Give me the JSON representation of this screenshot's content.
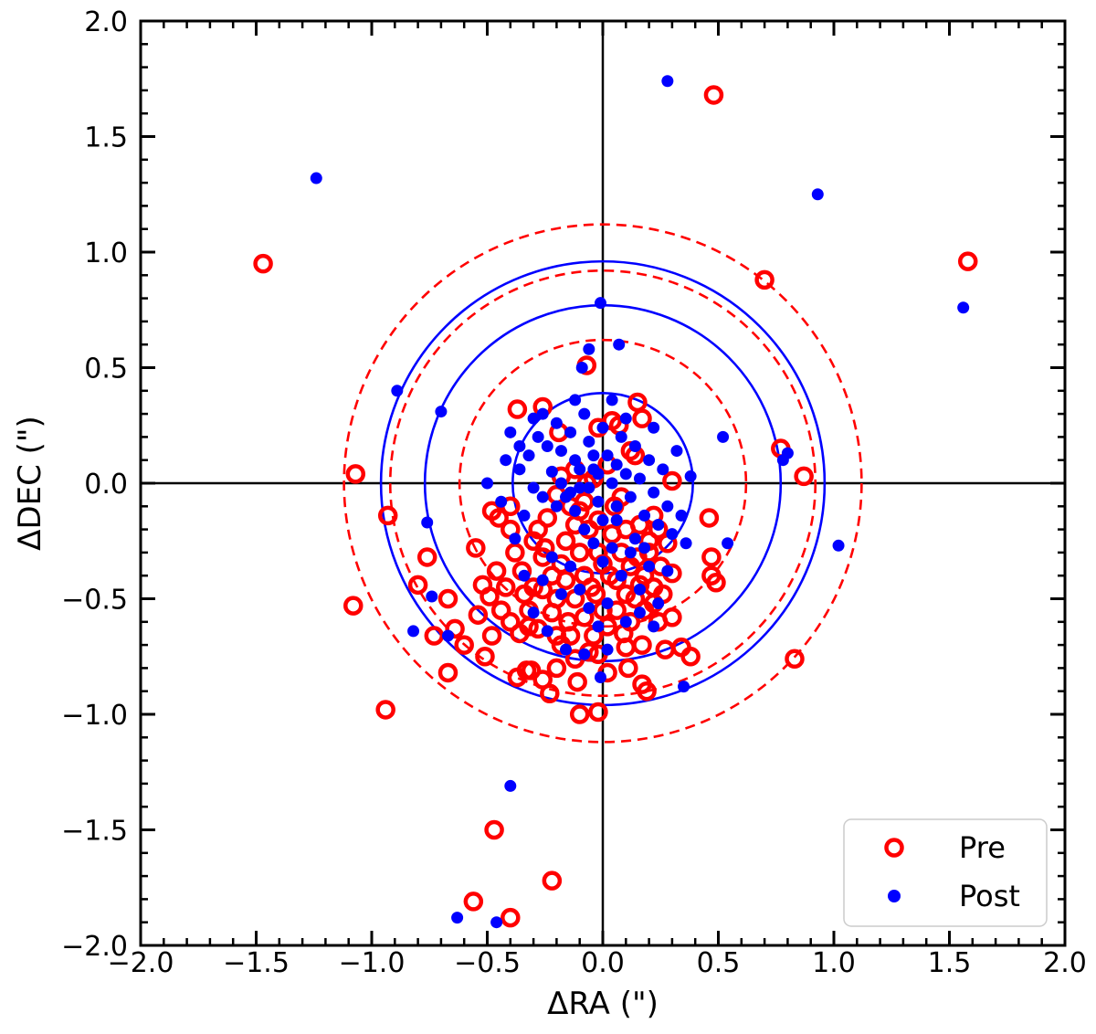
{
  "chart_data": {
    "type": "scatter",
    "xlabel": "ΔRA (\")",
    "ylabel": "ΔDEC (\")",
    "xlim": [
      -2.0,
      2.0
    ],
    "ylim": [
      -2.0,
      2.0
    ],
    "x_ticks": [
      "−2.0",
      "−1.5",
      "−1.0",
      "−0.5",
      "0.0",
      "0.5",
      "1.0",
      "1.5",
      "2.0"
    ],
    "y_ticks": [
      "2.0",
      "1.5",
      "1.0",
      "0.5",
      "0.0",
      "−0.5",
      "−1.0",
      "−1.5",
      "−2.0"
    ],
    "grid": false,
    "legend_position": "bottom-right",
    "reference_lines": {
      "x": 0.0,
      "y": 0.0
    },
    "circles": [
      {
        "group": "Pre",
        "radius": 0.62,
        "style": "dashed",
        "color": "#ff0000"
      },
      {
        "group": "Pre",
        "radius": 0.92,
        "style": "dashed",
        "color": "#ff0000"
      },
      {
        "group": "Pre",
        "radius": 1.12,
        "style": "dashed",
        "color": "#ff0000"
      },
      {
        "group": "Post",
        "radius": 0.39,
        "style": "solid",
        "color": "#0000ff"
      },
      {
        "group": "Post",
        "radius": 0.77,
        "style": "solid",
        "color": "#0000ff"
      },
      {
        "group": "Post",
        "radius": 0.96,
        "style": "solid",
        "color": "#0000ff"
      }
    ],
    "series": [
      {
        "name": "Pre",
        "marker": "open-circle",
        "color": "#ff0000",
        "points": [
          [
            -1.47,
            0.95
          ],
          [
            0.48,
            1.68
          ],
          [
            0.7,
            0.88
          ],
          [
            1.58,
            0.96
          ],
          [
            -1.07,
            0.04
          ],
          [
            -0.93,
            -0.14
          ],
          [
            -1.08,
            -0.53
          ],
          [
            -0.94,
            -0.98
          ],
          [
            0.77,
            0.15
          ],
          [
            0.87,
            0.03
          ],
          [
            0.83,
            -0.76
          ],
          [
            0.46,
            -0.15
          ],
          [
            0.47,
            -0.32
          ],
          [
            0.47,
            -0.4
          ],
          [
            0.49,
            -0.43
          ],
          [
            -0.47,
            -1.5
          ],
          [
            -0.22,
            -1.72
          ],
          [
            -0.56,
            -1.81
          ],
          [
            -0.4,
            -1.88
          ],
          [
            -0.76,
            -0.32
          ],
          [
            -0.8,
            -0.44
          ],
          [
            -0.67,
            -0.5
          ],
          [
            -0.73,
            -0.66
          ],
          [
            -0.64,
            -0.63
          ],
          [
            -0.67,
            -0.82
          ],
          [
            -0.55,
            -0.28
          ],
          [
            -0.52,
            -0.44
          ],
          [
            -0.49,
            -0.49
          ],
          [
            -0.48,
            -0.66
          ],
          [
            -0.51,
            -0.75
          ],
          [
            -0.4,
            -0.6
          ],
          [
            -0.37,
            -0.84
          ],
          [
            -0.33,
            -0.81
          ],
          [
            -0.31,
            -0.81
          ],
          [
            -0.26,
            -0.85
          ],
          [
            -0.23,
            -0.91
          ],
          [
            -0.1,
            -1.0
          ],
          [
            -0.02,
            -0.99
          ],
          [
            -0.11,
            -0.86
          ],
          [
            -0.06,
            -0.73
          ],
          [
            -0.02,
            -0.74
          ],
          [
            0.1,
            -0.71
          ],
          [
            0.11,
            -0.8
          ],
          [
            0.17,
            -0.87
          ],
          [
            0.19,
            -0.9
          ],
          [
            0.17,
            -0.7
          ],
          [
            0.24,
            -0.6
          ],
          [
            0.3,
            -0.58
          ],
          [
            0.27,
            -0.72
          ],
          [
            0.34,
            -0.71
          ],
          [
            0.38,
            -0.75
          ],
          [
            0.3,
            -0.39
          ],
          [
            0.3,
            0.01
          ],
          [
            0.22,
            -0.14
          ],
          [
            0.15,
            0.35
          ],
          [
            0.17,
            0.28
          ],
          [
            -0.37,
            0.32
          ],
          [
            -0.26,
            0.33
          ],
          [
            -0.19,
            0.22
          ],
          [
            -0.18,
            0.03
          ],
          [
            -0.12,
            0.06
          ],
          [
            -0.07,
            0.0
          ],
          [
            -0.02,
            0.24
          ],
          [
            0.04,
            0.27
          ],
          [
            0.07,
            0.25
          ],
          [
            0.12,
            0.14
          ],
          [
            0.14,
            0.12
          ],
          [
            -0.07,
            0.51
          ],
          [
            0.2,
            -0.3
          ],
          [
            0.22,
            -0.45
          ],
          [
            0.25,
            -0.36
          ],
          [
            0.18,
            -0.55
          ],
          [
            0.12,
            -0.6
          ],
          [
            0.09,
            -0.65
          ],
          [
            0.14,
            -0.5
          ],
          [
            0.15,
            -0.32
          ],
          [
            0.1,
            -0.2
          ],
          [
            0.05,
            -0.1
          ],
          [
            0.03,
            -0.4
          ],
          [
            0.0,
            -0.55
          ],
          [
            -0.03,
            -0.48
          ],
          [
            -0.08,
            -0.4
          ],
          [
            -0.1,
            -0.3
          ],
          [
            -0.12,
            -0.18
          ],
          [
            -0.15,
            -0.6
          ],
          [
            -0.18,
            -0.7
          ],
          [
            -0.2,
            -0.5
          ],
          [
            -0.22,
            -0.4
          ],
          [
            -0.25,
            -0.28
          ],
          [
            -0.28,
            -0.2
          ],
          [
            -0.3,
            -0.45
          ],
          [
            -0.32,
            -0.55
          ],
          [
            -0.35,
            -0.38
          ],
          [
            -0.38,
            -0.3
          ],
          [
            -0.4,
            -0.1
          ],
          [
            -0.45,
            -0.15
          ],
          [
            -0.48,
            -0.12
          ],
          [
            -0.42,
            -0.45
          ],
          [
            -0.44,
            -0.55
          ],
          [
            -0.36,
            -0.65
          ],
          [
            -0.28,
            -0.63
          ],
          [
            -0.2,
            -0.66
          ],
          [
            -0.14,
            -0.66
          ],
          [
            -0.08,
            -0.58
          ],
          [
            -0.04,
            -0.66
          ],
          [
            0.02,
            -0.62
          ],
          [
            0.06,
            -0.55
          ],
          [
            0.1,
            -0.48
          ],
          [
            0.18,
            -0.4
          ],
          [
            0.2,
            -0.25
          ],
          [
            0.08,
            -0.3
          ],
          [
            0.04,
            -0.22
          ],
          [
            -0.02,
            -0.3
          ],
          [
            -0.06,
            -0.2
          ],
          [
            -0.1,
            -0.12
          ],
          [
            -0.16,
            -0.25
          ],
          [
            -0.18,
            -0.35
          ],
          [
            -0.24,
            -0.15
          ],
          [
            -0.26,
            -0.32
          ],
          [
            -0.3,
            -0.25
          ],
          [
            -0.34,
            -0.48
          ],
          [
            -0.4,
            -0.2
          ],
          [
            -0.46,
            -0.38
          ],
          [
            -0.54,
            -0.57
          ],
          [
            -0.6,
            -0.7
          ],
          [
            0.12,
            -0.36
          ],
          [
            0.16,
            -0.44
          ],
          [
            0.06,
            -0.42
          ],
          [
            0.0,
            -0.35
          ],
          [
            -0.05,
            -0.45
          ],
          [
            -0.12,
            -0.5
          ],
          [
            -0.16,
            -0.42
          ],
          [
            -0.22,
            -0.56
          ],
          [
            -0.26,
            -0.46
          ],
          [
            -0.32,
            -0.62
          ],
          [
            -0.2,
            -0.8
          ],
          [
            -0.12,
            -0.76
          ],
          [
            0.02,
            -0.82
          ],
          [
            -0.02,
            -0.16
          ],
          [
            -0.08,
            -0.08
          ],
          [
            -0.14,
            -0.1
          ],
          [
            -0.2,
            -0.05
          ],
          [
            0.08,
            -0.06
          ],
          [
            0.16,
            -0.18
          ],
          [
            0.24,
            -0.2
          ],
          [
            0.28,
            -0.26
          ],
          [
            0.22,
            -0.52
          ],
          [
            0.26,
            -0.48
          ],
          [
            -0.04,
            0.02
          ],
          [
            0.02,
            0.08
          ]
        ]
      },
      {
        "name": "Post",
        "marker": "filled-circle",
        "color": "#0000ff",
        "points": [
          [
            -1.24,
            1.32
          ],
          [
            0.28,
            1.74
          ],
          [
            0.93,
            1.25
          ],
          [
            1.56,
            0.76
          ],
          [
            -0.01,
            0.78
          ],
          [
            0.07,
            0.6
          ],
          [
            -0.06,
            0.58
          ],
          [
            -0.09,
            0.5
          ],
          [
            -0.89,
            0.4
          ],
          [
            -0.7,
            0.31
          ],
          [
            0.52,
            0.2
          ],
          [
            0.8,
            0.13
          ],
          [
            0.78,
            0.1
          ],
          [
            0.38,
            0.03
          ],
          [
            -0.76,
            -0.17
          ],
          [
            -0.74,
            -0.49
          ],
          [
            0.54,
            -0.26
          ],
          [
            1.02,
            -0.27
          ],
          [
            -0.82,
            -0.64
          ],
          [
            -0.67,
            -0.66
          ],
          [
            0.35,
            -0.88
          ],
          [
            -0.4,
            -1.31
          ],
          [
            -0.63,
            -1.88
          ],
          [
            -0.46,
            -1.9
          ],
          [
            -0.01,
            -0.84
          ],
          [
            0.02,
            -0.72
          ],
          [
            -0.5,
            0.0
          ],
          [
            -0.4,
            0.22
          ],
          [
            -0.36,
            0.06
          ],
          [
            -0.32,
            0.12
          ],
          [
            -0.3,
            -0.02
          ],
          [
            -0.28,
            0.2
          ],
          [
            -0.26,
            0.3
          ],
          [
            -0.24,
            0.16
          ],
          [
            -0.22,
            0.05
          ],
          [
            -0.2,
            0.26
          ],
          [
            -0.18,
            0.14
          ],
          [
            -0.16,
            -0.06
          ],
          [
            -0.14,
            0.22
          ],
          [
            -0.12,
            0.1
          ],
          [
            -0.1,
            -0.02
          ],
          [
            -0.08,
            0.3
          ],
          [
            -0.06,
            0.18
          ],
          [
            -0.04,
            0.06
          ],
          [
            -0.02,
            -0.08
          ],
          [
            0.0,
            0.24
          ],
          [
            0.02,
            0.12
          ],
          [
            0.04,
            0.0
          ],
          [
            0.06,
            -0.1
          ],
          [
            0.08,
            0.2
          ],
          [
            0.1,
            0.04
          ],
          [
            0.12,
            -0.06
          ],
          [
            0.14,
            0.16
          ],
          [
            0.16,
            0.02
          ],
          [
            0.18,
            -0.14
          ],
          [
            0.2,
            0.1
          ],
          [
            0.22,
            -0.04
          ],
          [
            0.24,
            -0.18
          ],
          [
            0.26,
            0.06
          ],
          [
            0.28,
            -0.1
          ],
          [
            0.3,
            -0.22
          ],
          [
            0.32,
            0.14
          ],
          [
            0.34,
            -0.14
          ],
          [
            0.36,
            -0.26
          ],
          [
            0.22,
            0.24
          ],
          [
            0.1,
            0.28
          ],
          [
            -0.3,
            0.28
          ],
          [
            -0.34,
            -0.14
          ],
          [
            -0.38,
            -0.24
          ],
          [
            -0.44,
            -0.08
          ],
          [
            -0.12,
            -0.12
          ],
          [
            -0.08,
            -0.2
          ],
          [
            -0.04,
            -0.26
          ],
          [
            0.0,
            -0.34
          ],
          [
            0.04,
            -0.28
          ],
          [
            0.08,
            -0.4
          ],
          [
            0.12,
            -0.3
          ],
          [
            0.16,
            -0.46
          ],
          [
            0.2,
            -0.36
          ],
          [
            0.24,
            -0.52
          ],
          [
            0.22,
            -0.62
          ],
          [
            0.16,
            -0.56
          ],
          [
            0.1,
            -0.6
          ],
          [
            0.02,
            -0.52
          ],
          [
            -0.02,
            -0.62
          ],
          [
            -0.06,
            -0.54
          ],
          [
            -0.1,
            -0.46
          ],
          [
            -0.14,
            -0.36
          ],
          [
            -0.18,
            -0.48
          ],
          [
            -0.22,
            -0.32
          ],
          [
            -0.26,
            -0.42
          ],
          [
            -0.3,
            -0.56
          ],
          [
            -0.34,
            -0.4
          ],
          [
            -0.24,
            -0.64
          ],
          [
            -0.16,
            -0.72
          ],
          [
            -0.08,
            -0.74
          ],
          [
            -0.06,
            -0.02
          ],
          [
            -0.14,
            -0.04
          ],
          [
            -0.2,
            -0.1
          ],
          [
            -0.02,
            0.04
          ],
          [
            0.06,
            0.08
          ],
          [
            -0.1,
            0.06
          ],
          [
            -0.18,
            0.0
          ],
          [
            -0.26,
            -0.06
          ],
          [
            -0.04,
            0.12
          ],
          [
            0.14,
            -0.24
          ],
          [
            0.18,
            -0.28
          ],
          [
            0.28,
            -0.38
          ],
          [
            -0.36,
            0.16
          ],
          [
            -0.42,
            0.1
          ],
          [
            0.06,
            -0.16
          ],
          [
            0.0,
            -0.16
          ],
          [
            -0.12,
            0.36
          ],
          [
            0.04,
            0.36
          ]
        ]
      }
    ]
  }
}
